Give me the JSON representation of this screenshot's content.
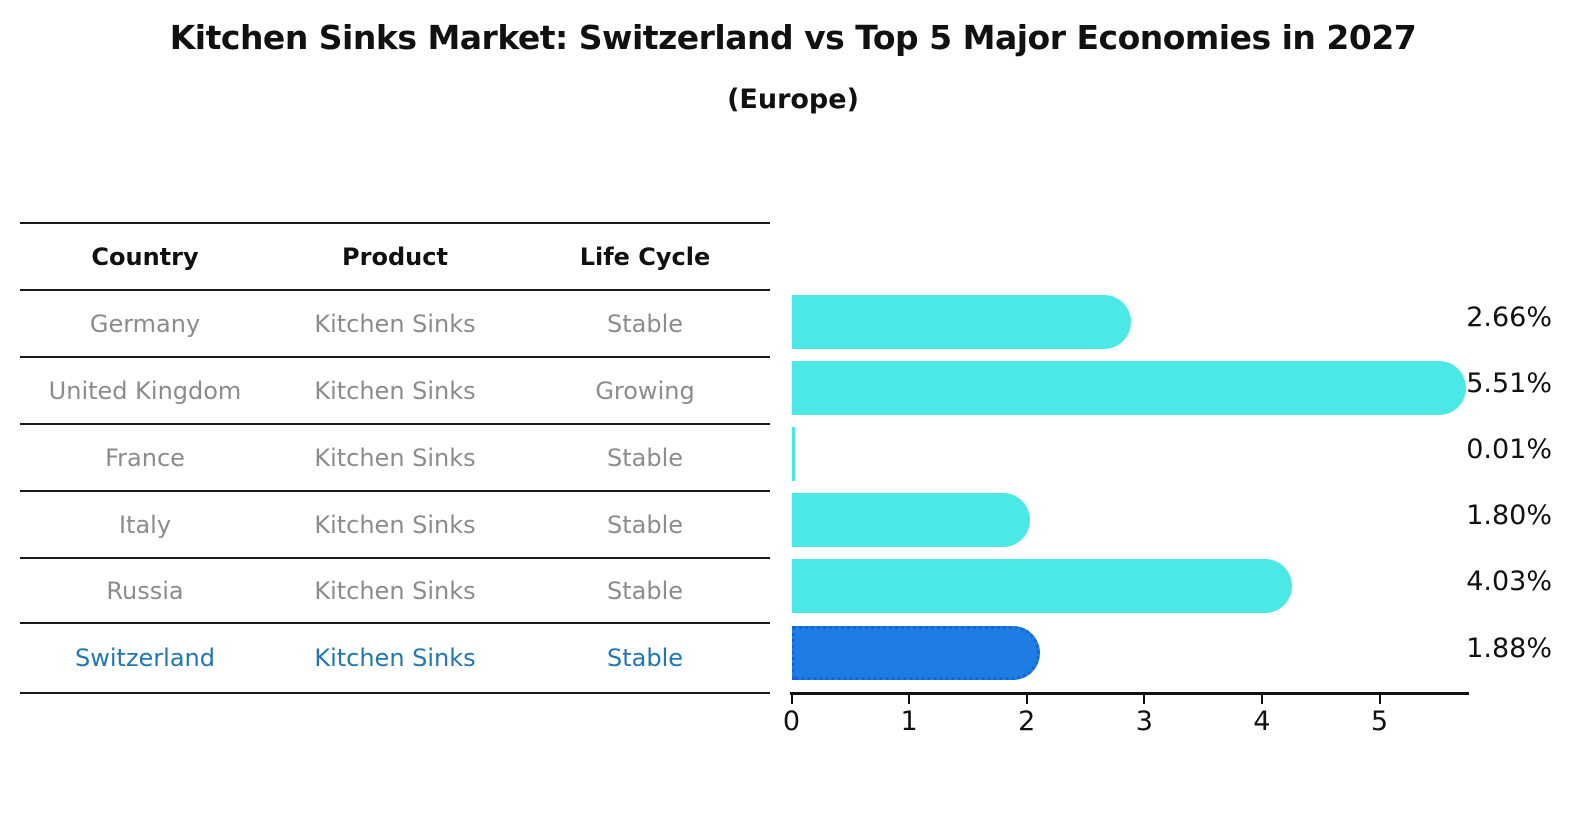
{
  "header": {
    "title": "Kitchen Sinks Market: Switzerland vs Top 5 Major Economies in 2027",
    "subtitle": "(Europe)"
  },
  "table": {
    "columns": [
      "Country",
      "Product",
      "Life Cycle"
    ],
    "rows": [
      {
        "country": "Germany",
        "product": "Kitchen Sinks",
        "life_cycle": "Stable",
        "highlighted": false
      },
      {
        "country": "United Kingdom",
        "product": "Kitchen Sinks",
        "life_cycle": "Growing",
        "highlighted": false
      },
      {
        "country": "France",
        "product": "Kitchen Sinks",
        "life_cycle": "Stable",
        "highlighted": false
      },
      {
        "country": "Italy",
        "product": "Kitchen Sinks",
        "life_cycle": "Stable",
        "highlighted": false
      },
      {
        "country": "Russia",
        "product": "Kitchen Sinks",
        "life_cycle": "Stable",
        "highlighted": false
      },
      {
        "country": "Switzerland",
        "product": "Kitchen Sinks",
        "life_cycle": "Stable",
        "highlighted": true
      }
    ]
  },
  "chart_data": {
    "type": "bar",
    "orientation": "horizontal",
    "title": "Kitchen Sinks Market: Switzerland vs Top 5 Major Economies in 2027",
    "subtitle": "(Europe)",
    "categories": [
      "Germany",
      "United Kingdom",
      "France",
      "Italy",
      "Russia",
      "Switzerland"
    ],
    "values": [
      2.66,
      5.51,
      0.01,
      1.8,
      4.03,
      1.88
    ],
    "value_labels": [
      "2.66%",
      "5.51%",
      "0.01%",
      "1.80%",
      "4.03%",
      "1.88%"
    ],
    "x_ticks": [
      "0",
      "1",
      "2",
      "3",
      "4",
      "5"
    ],
    "xlim": [
      0,
      5.78
    ],
    "grid": false,
    "legend": "none",
    "highlight_index": 5,
    "colors": {
      "bar_default": "#4CE8E6",
      "bar_highlight": "#1E7DE4",
      "highlight_border": "#1565D8",
      "highlight_text": "#1F77B4",
      "row_text": "#8C8C8C",
      "axis_text": "#111111"
    }
  }
}
